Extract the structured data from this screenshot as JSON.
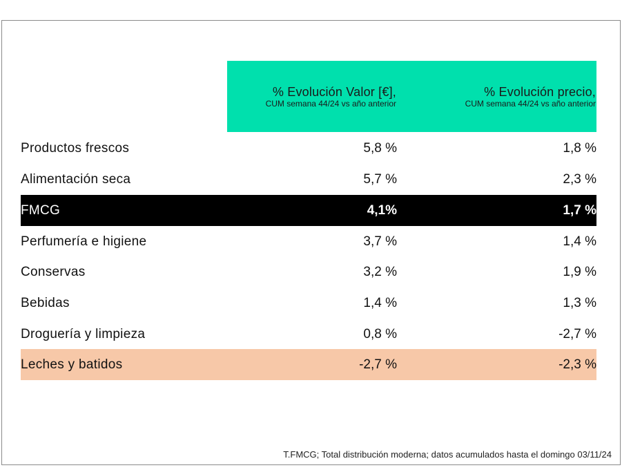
{
  "table": {
    "header_col1_title": "% Evolución Valor [€],",
    "header_col1_sub": "CUM semana 44/24 vs año anterior",
    "header_col2_title": "% Evolución precio,",
    "header_col2_sub": "CUM semana 44/24 vs año anterior",
    "highlight_dark": "#000000",
    "highlight_peach": "#f7c8a8",
    "header_color": "#00e0ad"
  },
  "chart_data": {
    "type": "table",
    "columns": [
      "% Evolución Valor [€], CUM semana 44/24 vs año anterior",
      "% Evolución precio, CUM semana 44/24 vs año anterior"
    ],
    "rows": [
      {
        "label": "Productos frescos",
        "valor": "5,8 %",
        "precio": "1,8 %"
      },
      {
        "label": "Alimentación seca",
        "valor": "5,7 %",
        "precio": "2,3 %"
      },
      {
        "label": "FMCG",
        "valor": "4,1%",
        "precio": "1,7 %"
      },
      {
        "label": "Perfumería e higiene",
        "valor": "3,7 %",
        "precio": "1,4 %"
      },
      {
        "label": "Conservas",
        "valor": "3,2 %",
        "precio": "1,9 %"
      },
      {
        "label": "Bebidas",
        "valor": "1,4 %",
        "precio": "1,3 %"
      },
      {
        "label": "Droguería y limpieza",
        "valor": "0,8 %",
        "precio": "-2,7 %"
      },
      {
        "label": "Leches y batidos",
        "valor": "-2,7 %",
        "precio": "-2,3 %"
      }
    ]
  },
  "footer": {
    "note": "T.FMCG; Total distribución moderna; datos acumulados hasta el domingo 03/11/24"
  }
}
